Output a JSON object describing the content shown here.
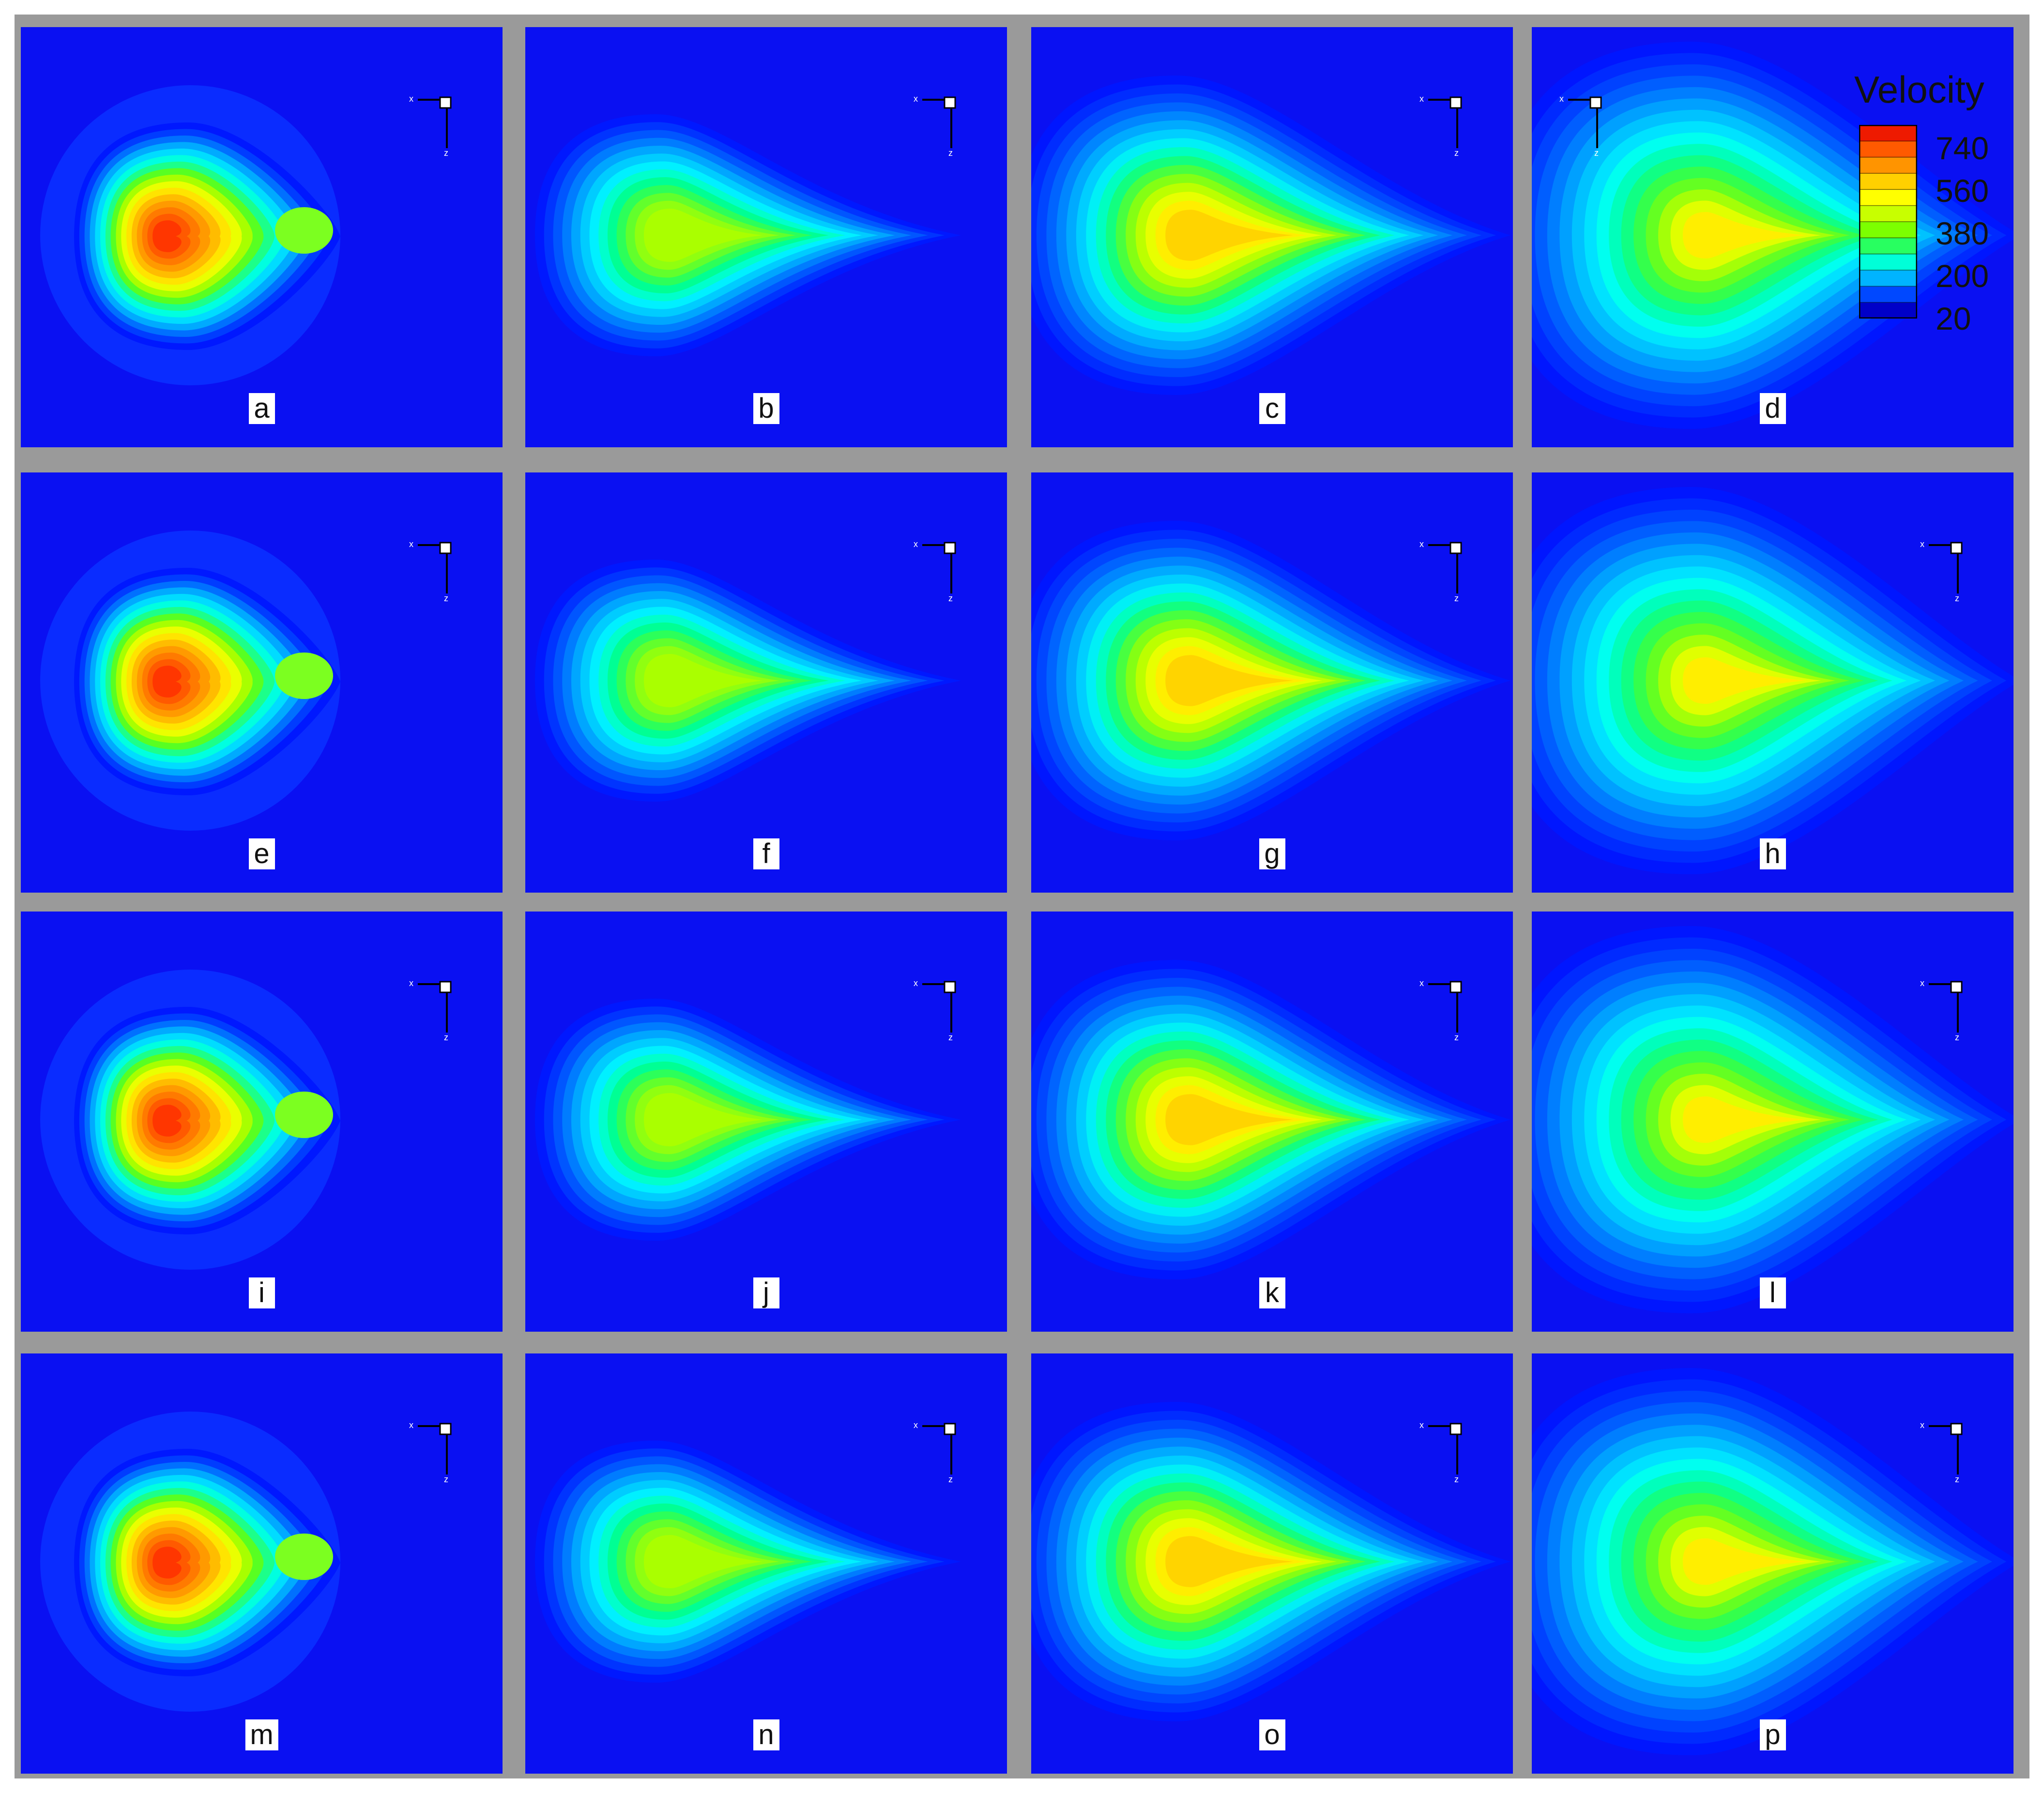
{
  "figure": {
    "colors": {
      "frame": "#9a9a9a",
      "background": "#0a10f2"
    },
    "panels": [
      {
        "label": "a",
        "variant": "inner"
      },
      {
        "label": "b",
        "variant": "drop1"
      },
      {
        "label": "c",
        "variant": "drop2"
      },
      {
        "label": "d",
        "variant": "drop3"
      },
      {
        "label": "e",
        "variant": "inner"
      },
      {
        "label": "f",
        "variant": "drop1"
      },
      {
        "label": "g",
        "variant": "drop2"
      },
      {
        "label": "h",
        "variant": "drop3"
      },
      {
        "label": "i",
        "variant": "inner"
      },
      {
        "label": "j",
        "variant": "drop1"
      },
      {
        "label": "k",
        "variant": "drop2"
      },
      {
        "label": "l",
        "variant": "drop3"
      },
      {
        "label": "m",
        "variant": "inner"
      },
      {
        "label": "n",
        "variant": "drop1"
      },
      {
        "label": "o",
        "variant": "drop2"
      },
      {
        "label": "p",
        "variant": "drop3"
      }
    ],
    "axis_labels": {
      "x": "x",
      "z": "z"
    },
    "colorbar": {
      "title": "Velocity",
      "ticks": [
        "740",
        "560",
        "380",
        "200",
        "20"
      ],
      "colors": [
        "#0000c8",
        "#0048ff",
        "#00b4ff",
        "#00ffd8",
        "#28ff60",
        "#7cff00",
        "#c8ff00",
        "#ffff00",
        "#ffd000",
        "#ff9400",
        "#ff5a00",
        "#ee1a00"
      ]
    }
  }
}
